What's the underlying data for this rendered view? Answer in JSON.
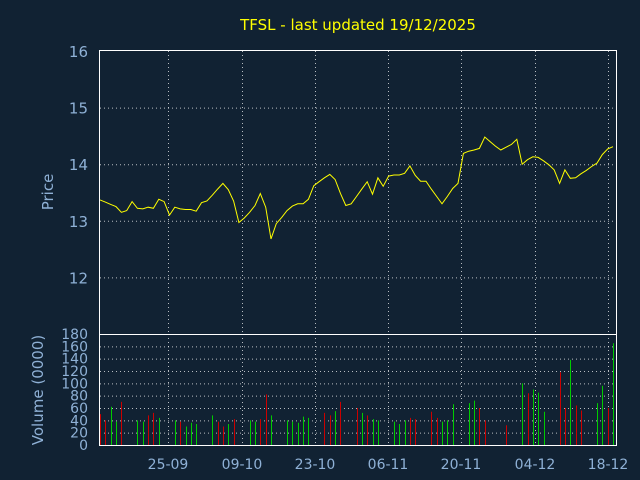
{
  "chart_data": {
    "type": "line",
    "title": "TFSL - last updated 19/12/2025",
    "colors": {
      "background": "#112233",
      "title": "#ffff00",
      "axis_text": "#8fb1d6",
      "frame": "#ffffff",
      "grid": "#ffffff",
      "price_line": "#ffff00",
      "volume_up": "#00cc00",
      "volume_down": "#cc0000"
    },
    "x_ticks": [
      "25-09",
      "09-10",
      "23-10",
      "06-11",
      "20-11",
      "04-12",
      "18-12"
    ],
    "price_panel": {
      "ylabel": "Price",
      "ylim": [
        11.0,
        16.0
      ],
      "y_ticks": [
        12,
        13,
        14,
        15,
        16
      ],
      "values": [
        13.37,
        13.33,
        13.29,
        13.25,
        13.15,
        13.18,
        13.34,
        13.22,
        13.21,
        13.24,
        13.22,
        13.38,
        13.34,
        13.1,
        13.24,
        13.21,
        13.2,
        13.2,
        13.17,
        13.32,
        13.35,
        13.45,
        13.56,
        13.66,
        13.55,
        13.35,
        12.97,
        13.05,
        13.15,
        13.27,
        13.48,
        13.24,
        12.68,
        12.95,
        13.06,
        13.18,
        13.26,
        13.3,
        13.3,
        13.38,
        13.62,
        13.69,
        13.76,
        13.82,
        13.73,
        13.48,
        13.27,
        13.3,
        13.43,
        13.56,
        13.69,
        13.47,
        13.76,
        13.61,
        13.79,
        13.81,
        13.81,
        13.84,
        13.97,
        13.8,
        13.7,
        13.7,
        13.56,
        13.43,
        13.3,
        13.43,
        13.57,
        13.66,
        14.19,
        14.23,
        14.25,
        14.28,
        14.48,
        14.4,
        14.32,
        14.25,
        14.3,
        14.35,
        14.44,
        14.0,
        14.08,
        14.13,
        14.12,
        14.06,
        13.99,
        13.9,
        13.66,
        13.9,
        13.75,
        13.76,
        13.83,
        13.89,
        13.96,
        14.02,
        14.17,
        14.27,
        14.31
      ]
    },
    "volume_panel": {
      "ylabel": "Volume (0000)",
      "ylim": [
        0,
        180
      ],
      "y_ticks": [
        0,
        20,
        40,
        60,
        80,
        100,
        120,
        140,
        160,
        180
      ],
      "values": [
        50,
        40,
        62,
        38,
        70,
        0,
        0,
        40,
        38,
        48,
        52,
        44,
        0,
        0,
        40,
        38,
        30,
        36,
        34,
        0,
        0,
        48,
        38,
        30,
        34,
        42,
        0,
        0,
        40,
        38,
        42,
        82,
        48,
        0,
        0,
        40,
        38,
        36,
        46,
        44,
        0,
        0,
        52,
        48,
        55,
        70,
        0,
        0,
        60,
        52,
        48,
        42,
        40,
        0,
        0,
        38,
        34,
        40,
        44,
        42,
        0,
        0,
        54,
        44,
        38,
        40,
        66,
        0,
        0,
        68,
        72,
        60,
        40,
        0,
        0,
        0,
        32,
        0,
        0,
        100,
        84,
        90,
        85,
        54,
        0,
        0,
        118,
        60,
        138,
        64,
        56,
        0,
        0,
        68,
        96,
        60,
        165
      ],
      "down": [
        1,
        1,
        0,
        0,
        1,
        0,
        0,
        0,
        0,
        1,
        1,
        0,
        0,
        0,
        0,
        1,
        0,
        0,
        0,
        0,
        0,
        0,
        1,
        1,
        0,
        1,
        0,
        0,
        0,
        0,
        1,
        1,
        0,
        0,
        0,
        0,
        0,
        0,
        0,
        0,
        0,
        0,
        1,
        1,
        0,
        1,
        0,
        0,
        1,
        0,
        1,
        0,
        0,
        0,
        0,
        0,
        0,
        0,
        1,
        1,
        0,
        0,
        1,
        1,
        0,
        0,
        0,
        0,
        0,
        0,
        0,
        1,
        1,
        0,
        0,
        0,
        1,
        0,
        0,
        0,
        1,
        0,
        0,
        0,
        0,
        0,
        1,
        1,
        0,
        1,
        1,
        0,
        0,
        0,
        0,
        1,
        0
      ]
    },
    "grid": true
  }
}
